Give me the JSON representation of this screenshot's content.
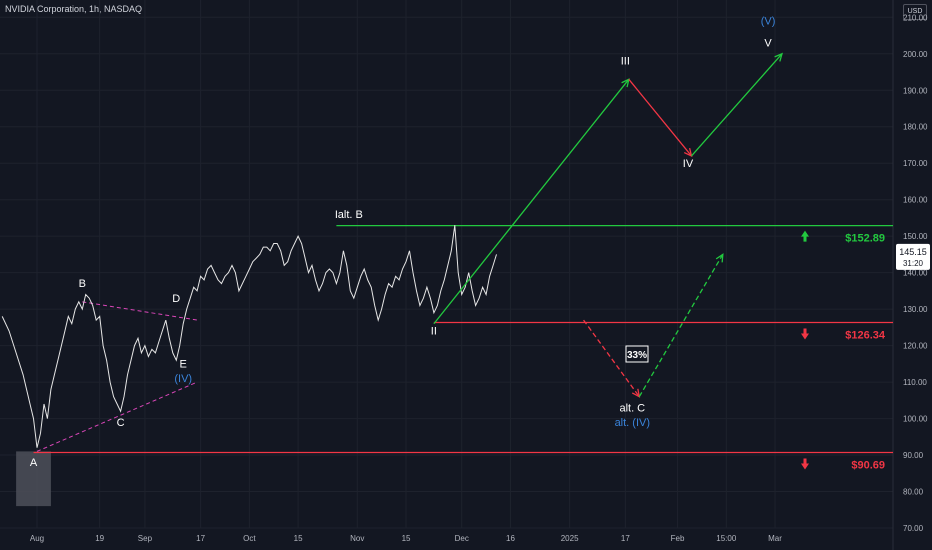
{
  "header": {
    "title": "NVIDIA Corporation, 1h, NASDAQ",
    "currency": "USD"
  },
  "colors": {
    "bg": "#131722",
    "green": "#22c93f",
    "red": "#f23645",
    "magenta": "#d946b8",
    "blue": "#3a83d9",
    "white": "#ffffff",
    "text": "#b2b5be",
    "grid": "#1e222d"
  },
  "chart_data": {
    "type": "line",
    "title": "",
    "y_range": [
      70,
      212
    ],
    "y_ticks": [
      70,
      80,
      90,
      100,
      110,
      120,
      130,
      140,
      150,
      160,
      170,
      180,
      190,
      200,
      210
    ],
    "x_ticks": [
      {
        "label": "Aug",
        "x": 0
      },
      {
        "label": "19",
        "x": 18
      },
      {
        "label": "Sep",
        "x": 31
      },
      {
        "label": "17",
        "x": 47
      },
      {
        "label": "Oct",
        "x": 61
      },
      {
        "label": "15",
        "x": 75
      },
      {
        "label": "Nov",
        "x": 92
      },
      {
        "label": "15",
        "x": 106
      },
      {
        "label": "Dec",
        "x": 122
      },
      {
        "label": "16",
        "x": 136
      },
      {
        "label": "2025",
        "x": 153
      },
      {
        "label": "17",
        "x": 169
      },
      {
        "label": "Feb",
        "x": 184
      },
      {
        "label": "15:00",
        "x": 198
      },
      {
        "label": "Mar",
        "x": 212
      }
    ],
    "price_series": [
      [
        -10,
        128
      ],
      [
        -8,
        124
      ],
      [
        -6,
        118
      ],
      [
        -4,
        112
      ],
      [
        -2,
        104
      ],
      [
        -1,
        100
      ],
      [
        0,
        92
      ],
      [
        1,
        96
      ],
      [
        2,
        104
      ],
      [
        3,
        100
      ],
      [
        4,
        108
      ],
      [
        5,
        112
      ],
      [
        6,
        116
      ],
      [
        7,
        120
      ],
      [
        8,
        124
      ],
      [
        9,
        128
      ],
      [
        10,
        126
      ],
      [
        11,
        130
      ],
      [
        12,
        132
      ],
      [
        13,
        130
      ],
      [
        14,
        134
      ],
      [
        15,
        133
      ],
      [
        16,
        131
      ],
      [
        17,
        127
      ],
      [
        18,
        128
      ],
      [
        19,
        120
      ],
      [
        20,
        116
      ],
      [
        21,
        110
      ],
      [
        22,
        106
      ],
      [
        23,
        104
      ],
      [
        24,
        102
      ],
      [
        25,
        106
      ],
      [
        26,
        112
      ],
      [
        27,
        116
      ],
      [
        28,
        120
      ],
      [
        29,
        122
      ],
      [
        30,
        118
      ],
      [
        31,
        120
      ],
      [
        32,
        117
      ],
      [
        33,
        119
      ],
      [
        34,
        118
      ],
      [
        35,
        121
      ],
      [
        36,
        124
      ],
      [
        37,
        127
      ],
      [
        38,
        122
      ],
      [
        39,
        118
      ],
      [
        40,
        116
      ],
      [
        41,
        120
      ],
      [
        42,
        126
      ],
      [
        43,
        130
      ],
      [
        44,
        133
      ],
      [
        45,
        136
      ],
      [
        46,
        135
      ],
      [
        47,
        139
      ],
      [
        48,
        138
      ],
      [
        49,
        141
      ],
      [
        50,
        142
      ],
      [
        51,
        140
      ],
      [
        52,
        138
      ],
      [
        53,
        137
      ],
      [
        54,
        139
      ],
      [
        55,
        140
      ],
      [
        56,
        142
      ],
      [
        57,
        140
      ],
      [
        58,
        135
      ],
      [
        59,
        137
      ],
      [
        60,
        139
      ],
      [
        61,
        141
      ],
      [
        62,
        143
      ],
      [
        63,
        144
      ],
      [
        64,
        145
      ],
      [
        65,
        147
      ],
      [
        66,
        147
      ],
      [
        67,
        146
      ],
      [
        68,
        148
      ],
      [
        69,
        148
      ],
      [
        70,
        146
      ],
      [
        71,
        142
      ],
      [
        72,
        143
      ],
      [
        73,
        146
      ],
      [
        74,
        148
      ],
      [
        75,
        150
      ],
      [
        76,
        148
      ],
      [
        77,
        144
      ],
      [
        78,
        140
      ],
      [
        79,
        142
      ],
      [
        80,
        138
      ],
      [
        81,
        135
      ],
      [
        82,
        137
      ],
      [
        83,
        140
      ],
      [
        84,
        141
      ],
      [
        85,
        140
      ],
      [
        86,
        137
      ],
      [
        87,
        140
      ],
      [
        88,
        146
      ],
      [
        89,
        142
      ],
      [
        90,
        135
      ],
      [
        91,
        133
      ],
      [
        92,
        136
      ],
      [
        93,
        139
      ],
      [
        94,
        141
      ],
      [
        95,
        138
      ],
      [
        96,
        136
      ],
      [
        97,
        131
      ],
      [
        98,
        127
      ],
      [
        99,
        130
      ],
      [
        100,
        134
      ],
      [
        101,
        137
      ],
      [
        102,
        136
      ],
      [
        103,
        139
      ],
      [
        104,
        138
      ],
      [
        105,
        141
      ],
      [
        106,
        143
      ],
      [
        107,
        146
      ],
      [
        108,
        140
      ],
      [
        109,
        135
      ],
      [
        110,
        131
      ],
      [
        111,
        133
      ],
      [
        112,
        136
      ],
      [
        113,
        133
      ],
      [
        114,
        129
      ],
      [
        115,
        131
      ],
      [
        116,
        135
      ],
      [
        117,
        138
      ],
      [
        118,
        142
      ],
      [
        119,
        146
      ],
      [
        120,
        153
      ],
      [
        121,
        140
      ],
      [
        122,
        134
      ],
      [
        123,
        136
      ],
      [
        124,
        140
      ],
      [
        125,
        135
      ],
      [
        126,
        131
      ],
      [
        127,
        133
      ],
      [
        128,
        136
      ],
      [
        129,
        134
      ],
      [
        130,
        139
      ],
      [
        131,
        142
      ],
      [
        132,
        145
      ]
    ],
    "horizontal_levels": [
      {
        "price": 152.89,
        "label": "$152.89",
        "color": "green",
        "arrow": "up"
      },
      {
        "price": 126.34,
        "label": "$126.34",
        "color": "red",
        "arrow": "down"
      },
      {
        "price": 90.69,
        "label": "$90.69",
        "color": "red",
        "arrow": "down"
      }
    ],
    "last_price": {
      "value": "145.15",
      "time": "31:20"
    },
    "probability_label": "33%",
    "wave_labels": [
      {
        "text": "A",
        "x": -1,
        "price": 87,
        "color": "white"
      },
      {
        "text": "B",
        "x": 13,
        "price": 136,
        "color": "white"
      },
      {
        "text": "C",
        "x": 24,
        "price": 98,
        "color": "white"
      },
      {
        "text": "D",
        "x": 40,
        "price": 132,
        "color": "white"
      },
      {
        "text": "E",
        "x": 42,
        "price": 114,
        "color": "white"
      },
      {
        "text": "(IV)",
        "x": 42,
        "price": 110,
        "color": "blue"
      },
      {
        "text": "I",
        "x": 86,
        "price": 155,
        "color": "white"
      },
      {
        "text": "alt. B",
        "x": 90,
        "price": 155,
        "color": "white"
      },
      {
        "text": "II",
        "x": 114,
        "price": 123,
        "color": "white"
      },
      {
        "text": "III",
        "x": 169,
        "price": 197,
        "color": "white"
      },
      {
        "text": "IV",
        "x": 187,
        "price": 169,
        "color": "white"
      },
      {
        "text": "V",
        "x": 210,
        "price": 202,
        "color": "white"
      },
      {
        "text": "(V)",
        "x": 210,
        "price": 208,
        "color": "blue"
      },
      {
        "text": "alt. C",
        "x": 171,
        "price": 102,
        "color": "white"
      },
      {
        "text": "alt. (IV)",
        "x": 171,
        "price": 98,
        "color": "blue"
      }
    ],
    "triangle_lines": [
      {
        "from": [
          13,
          132
        ],
        "to": [
          46,
          127
        ]
      },
      {
        "from": [
          0,
          91
        ],
        "to": [
          46,
          110
        ]
      }
    ],
    "primary_path": [
      [
        114,
        126
      ],
      [
        170,
        193
      ],
      [
        188,
        172
      ],
      [
        214,
        200
      ]
    ],
    "alternate_path": [
      [
        157,
        127
      ],
      [
        173,
        106
      ],
      [
        197,
        145
      ]
    ],
    "highlight_box": {
      "x0": -6,
      "x1": 4,
      "price_top": 91,
      "price_bottom": 76
    }
  }
}
